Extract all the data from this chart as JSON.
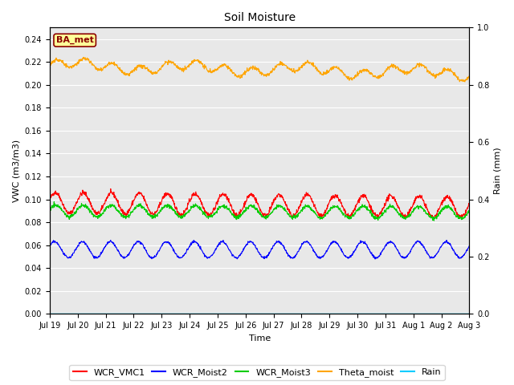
{
  "title": "Soil Moisture",
  "xlabel": "Time",
  "ylabel_left": "VWC (m3/m3)",
  "ylabel_right": "Rain (mm)",
  "ylim_left": [
    0.0,
    0.25
  ],
  "ylim_right": [
    0.0,
    1.0
  ],
  "yticks_left": [
    0.0,
    0.02,
    0.04,
    0.06,
    0.08,
    0.1,
    0.12,
    0.14,
    0.16,
    0.18,
    0.2,
    0.22,
    0.24
  ],
  "yticks_right": [
    0.0,
    0.2,
    0.4,
    0.6,
    0.8,
    1.0
  ],
  "colors": {
    "WCR_VMC1": "#ff0000",
    "WCR_Moist2": "#0000ff",
    "WCR_Moist3": "#00cc00",
    "Theta_moist": "#ffa500",
    "Rain": "#00ccff"
  },
  "legend_labels": [
    "WCR_VMC1",
    "WCR_Moist2",
    "WCR_Moist3",
    "Theta_moist",
    "Rain"
  ],
  "annotation_text": "BA_met",
  "annotation_color": "#8b0000",
  "annotation_bg": "#ffff99",
  "bg_color": "#e8e8e8",
  "fig_bg_color": "#ffffff",
  "grid_color": "#ffffff",
  "tick_labels": [
    "Jul 19",
    "Jul 20",
    "Jul 21",
    "Jul 22",
    "Jul 23",
    "Jul 24",
    "Jul 25",
    "Jul 26",
    "Jul 27",
    "Jul 28",
    "Jul 29",
    "Jul 30",
    "Jul 31",
    "Aug 1",
    "Aug 2",
    "Aug 3"
  ],
  "n_days": 15,
  "n_points": 1440,
  "title_fontsize": 10,
  "axis_fontsize": 8,
  "tick_fontsize": 7,
  "legend_fontsize": 8
}
